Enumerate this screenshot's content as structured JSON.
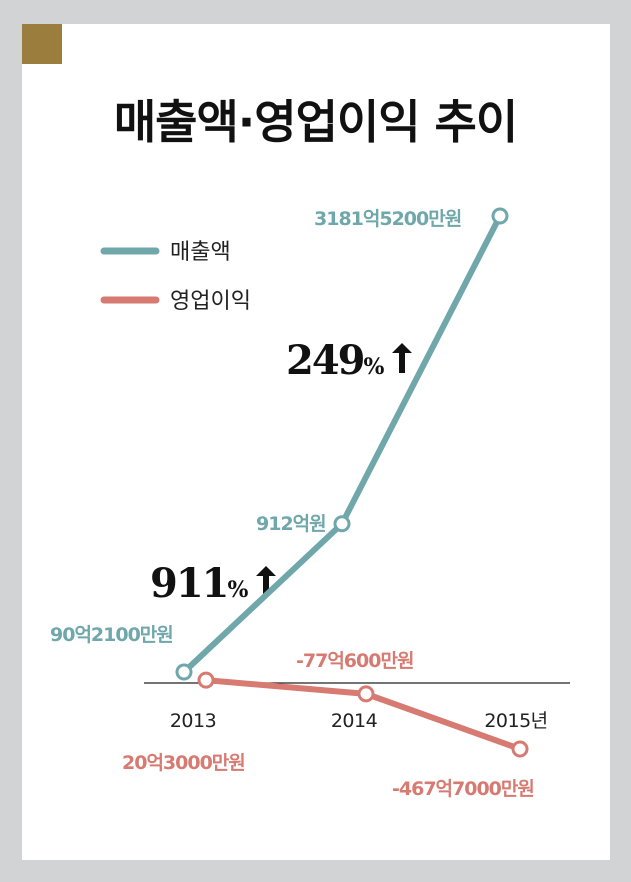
{
  "title": "매출액·영업이익 추이",
  "colors": {
    "revenue": "#6fa7ab",
    "profit": "#d67a72",
    "corner": "#9b7d3e",
    "text": "#222222"
  },
  "growth": [
    {
      "value": "911",
      "unit": "%"
    },
    {
      "value": "249",
      "unit": "%"
    }
  ],
  "chart_data": {
    "type": "line",
    "x": [
      "2013",
      "2014",
      "2015년"
    ],
    "series": [
      {
        "name": "매출액",
        "values": [
          90.21,
          912,
          3181.52
        ],
        "labels": [
          "90억2100만원",
          "912억원",
          "3181억5200만원"
        ]
      },
      {
        "name": "영업이익",
        "values": [
          20.3,
          -77.06,
          -467.7
        ],
        "labels": [
          "20억3000만원",
          "-77억600만원",
          "-467억7000만원"
        ]
      }
    ],
    "legend_position": "top-left",
    "grid": false
  }
}
